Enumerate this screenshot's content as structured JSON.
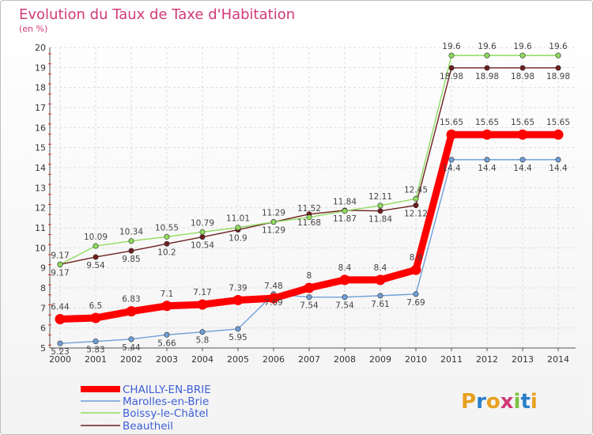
{
  "title": "Evolution du Taux de Taxe d'Habitation",
  "unit_label": "(en %)",
  "logo": "Proxiti",
  "chart_data": {
    "type": "line",
    "title": "Evolution du Taux de Taxe d'Habitation",
    "ylabel": "(en %)",
    "x": [
      "2000",
      "2001",
      "2002",
      "2003",
      "2004",
      "2005",
      "2006",
      "2007",
      "2008",
      "2009",
      "2010",
      "2011",
      "2012",
      "2013",
      "2014"
    ],
    "ylim": [
      5,
      20
    ],
    "yticks": [
      5,
      6,
      7,
      8,
      9,
      10,
      11,
      12,
      13,
      14,
      15,
      16,
      17,
      18,
      19,
      20
    ],
    "grid": true,
    "legend_position": "bottom-left",
    "series": [
      {
        "name": "CHAILLY-EN-BRIE",
        "color": "#ff0000",
        "values": [
          6.44,
          6.5,
          6.83,
          7.1,
          7.17,
          7.39,
          7.48,
          8,
          8.4,
          8.4,
          8.9,
          15.65,
          15.65,
          15.65,
          15.65
        ],
        "labels": [
          "6.44",
          "6.5",
          "6.83",
          "7.1",
          "7.17",
          "7.39",
          "7.48",
          "8",
          "8.4",
          "8.4",
          "8.9",
          "15.65",
          "15.65",
          "15.65",
          "15.65"
        ]
      },
      {
        "name": "Marolles-en-Brie",
        "color": "#6f9fd8",
        "values": [
          5.23,
          5.33,
          5.44,
          5.66,
          5.8,
          5.95,
          7.69,
          7.54,
          7.54,
          7.61,
          7.69,
          14.4,
          14.4,
          14.4,
          14.4
        ],
        "labels": [
          "5.23",
          "5.33",
          "5.44",
          "5.66",
          "5.8",
          "5.95",
          "7.69",
          "7.54",
          "7.54",
          "7.61",
          "7.69",
          "14.4",
          "14.4",
          "14.4",
          "14.4"
        ]
      },
      {
        "name": "Boissy-le-Châtel",
        "color": "#8fdc5e",
        "values": [
          9.17,
          10.09,
          10.34,
          10.55,
          10.79,
          11.01,
          11.29,
          11.52,
          11.84,
          12.11,
          12.45,
          19.6,
          19.6,
          19.6,
          19.6
        ],
        "labels": [
          "9.17",
          "10.09",
          "10.34",
          "10.55",
          "10.79",
          "11.01",
          "11.29",
          "11.52",
          "11.84",
          "12.11",
          "12.45",
          "19.6",
          "19.6",
          "19.6",
          "19.6"
        ]
      },
      {
        "name": "Beautheil",
        "color": "#6e1e1e",
        "values": [
          9.17,
          9.54,
          9.85,
          10.2,
          10.54,
          10.9,
          11.29,
          11.68,
          11.87,
          11.84,
          12.12,
          18.98,
          18.98,
          18.98,
          18.98
        ],
        "labels": [
          "9.17",
          "9.54",
          "9.85",
          "10.2",
          "10.54",
          "10.9",
          "11.29",
          "11.68",
          "11.87",
          "11.84",
          "12.12",
          "18.98",
          "18.98",
          "18.98",
          "18.98"
        ]
      }
    ]
  }
}
